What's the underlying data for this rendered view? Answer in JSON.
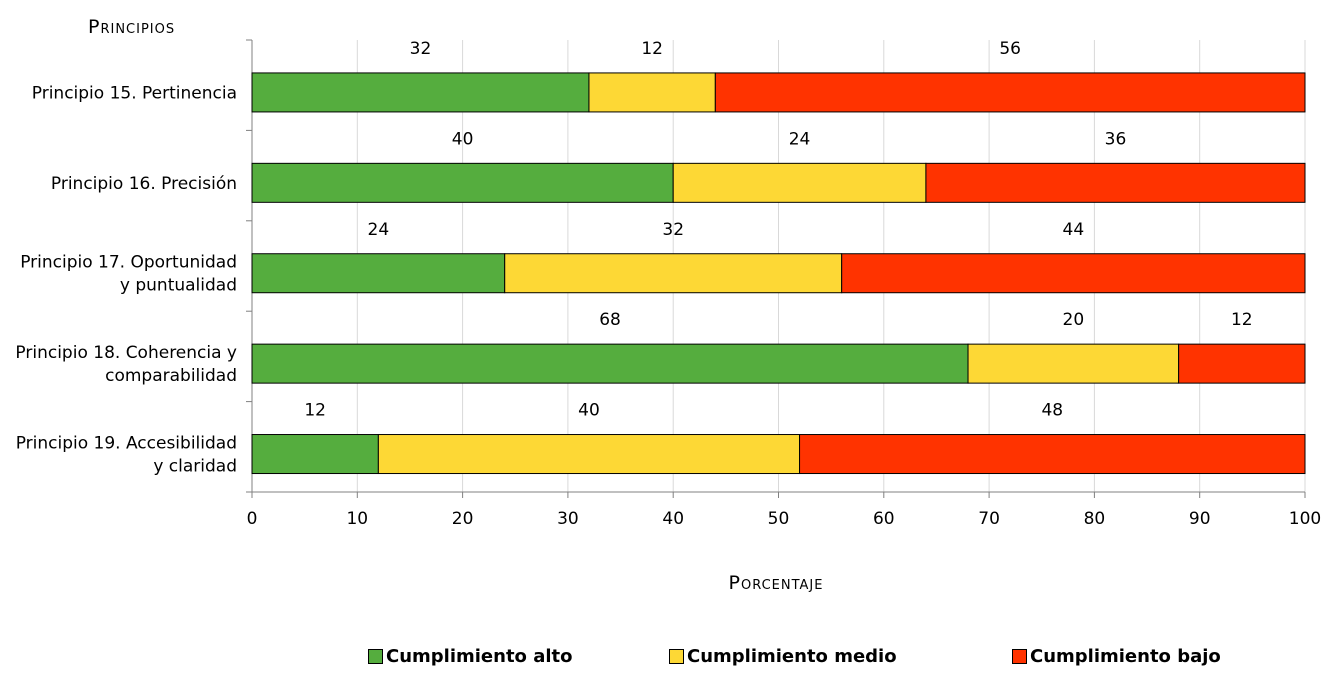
{
  "chart_data": {
    "type": "bar",
    "orientation": "horizontal",
    "stacked": true,
    "y_axis_title": "Principios",
    "x_axis_title": "Porcentaje",
    "categories": [
      [
        "Principio 15. Pertinencia"
      ],
      [
        "Principio 16. Precisión"
      ],
      [
        "Principio 17. Oportunidad",
        "y puntualidad"
      ],
      [
        "Principio 18. Coherencia y",
        "comparabilidad"
      ],
      [
        "Principio 19. Accesibilidad",
        "y claridad"
      ]
    ],
    "series": [
      {
        "name": "Cumplimiento alto",
        "color": "#55ad3e",
        "values": [
          32,
          40,
          24,
          68,
          12
        ]
      },
      {
        "name": "Cumplimiento medio",
        "color": "#fdd835",
        "values": [
          12,
          24,
          32,
          20,
          40
        ]
      },
      {
        "name": "Cumplimiento bajo",
        "color": "#ff3300",
        "values": [
          56,
          36,
          44,
          12,
          48
        ]
      }
    ],
    "xlim": [
      0,
      100
    ],
    "x_ticks": [
      "0",
      "10",
      "20",
      "30",
      "40",
      "50",
      "60",
      "70",
      "80",
      "90",
      "100"
    ],
    "grid": "vertical",
    "legend": "bottom"
  }
}
